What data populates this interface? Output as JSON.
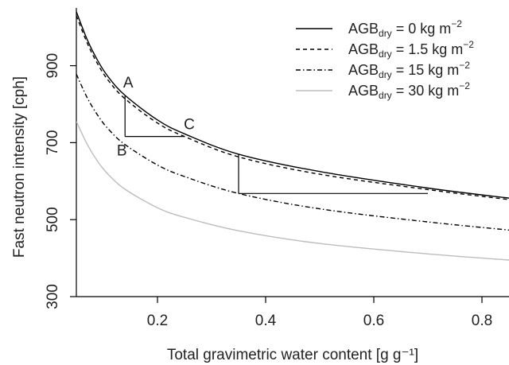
{
  "chart_data": {
    "type": "line",
    "title": "",
    "xlabel": "Total gravimetric water content [g g⁻¹]",
    "ylabel": "Fast neutron intensity [cph]",
    "xlim": [
      0.05,
      0.85
    ],
    "ylim": [
      300,
      1050
    ],
    "x_ticks": [
      0.2,
      0.4,
      0.6,
      0.8
    ],
    "x_tick_labels": [
      "0.2",
      "0.4",
      "0.6",
      "0.8"
    ],
    "y_ticks": [
      300,
      500,
      700,
      900
    ],
    "y_tick_labels": [
      "300",
      "500",
      "700",
      "900"
    ],
    "grid": false,
    "legend_position": "top-right",
    "series": [
      {
        "name": "AGB_dry = 0 kg m^-2",
        "legend": {
          "prefix": "AGB",
          "sub": "dry",
          "value": "=    0 kg m",
          "sup": "−2"
        },
        "color": "#000000",
        "dash": "",
        "x": [
          0.05,
          0.07,
          0.09,
          0.11,
          0.14,
          0.2,
          0.25,
          0.35,
          0.5,
          0.7,
          0.85
        ],
        "y": [
          1040,
          968,
          912,
          869,
          823,
          759,
          723,
          670,
          625,
          582,
          556
        ]
      },
      {
        "name": "AGB_dry = 1.5 kg m^-2",
        "legend": {
          "prefix": "AGB",
          "sub": "dry",
          "value": "= 1.5 kg m",
          "sup": "−2"
        },
        "color": "#000000",
        "dash": "5,4",
        "x": [
          0.05,
          0.07,
          0.09,
          0.11,
          0.14,
          0.2,
          0.25,
          0.35,
          0.5,
          0.7,
          0.85
        ],
        "y": [
          1030,
          959,
          903,
          860,
          814,
          751,
          716,
          663,
          618,
          578,
          552
        ]
      },
      {
        "name": "AGB_dry = 15 kg m^-2",
        "legend": {
          "prefix": "AGB",
          "sub": "dry",
          "value": "=  15 kg m",
          "sup": "−2"
        },
        "color": "#000000",
        "dash": "6,3,1.5,3",
        "x": [
          0.05,
          0.07,
          0.09,
          0.11,
          0.14,
          0.2,
          0.25,
          0.35,
          0.5,
          0.7,
          0.85
        ],
        "y": [
          878,
          817,
          770,
          734,
          695,
          642,
          612,
          568,
          528,
          494,
          473
        ]
      },
      {
        "name": "AGB_dry = 30 kg m^-2",
        "legend": {
          "prefix": "AGB",
          "sub": "dry",
          "value": "=  30 kg m",
          "sup": "−2"
        },
        "color": "#bdbdbd",
        "dash": "",
        "x": [
          0.05,
          0.07,
          0.09,
          0.11,
          0.14,
          0.2,
          0.25,
          0.35,
          0.5,
          0.7,
          0.85
        ],
        "y": [
          755,
          696,
          650,
          616,
          579,
          531,
          506,
          471,
          438,
          411,
          395
        ]
      }
    ],
    "annotation_lines": [
      {
        "x": [
          0.14,
          0.14
        ],
        "y": [
          823,
          716
        ]
      },
      {
        "x": [
          0.14,
          0.25
        ],
        "y": [
          716,
          716
        ]
      },
      {
        "x": [
          0.35,
          0.35
        ],
        "y": [
          670,
          568
        ]
      },
      {
        "x": [
          0.35,
          0.7
        ],
        "y": [
          568,
          568
        ]
      }
    ],
    "point_labels": [
      {
        "text": "A",
        "x": 0.14,
        "y": 823
      },
      {
        "text": "B",
        "x": 0.14,
        "y": 716
      },
      {
        "text": "C",
        "x": 0.25,
        "y": 723
      }
    ]
  }
}
